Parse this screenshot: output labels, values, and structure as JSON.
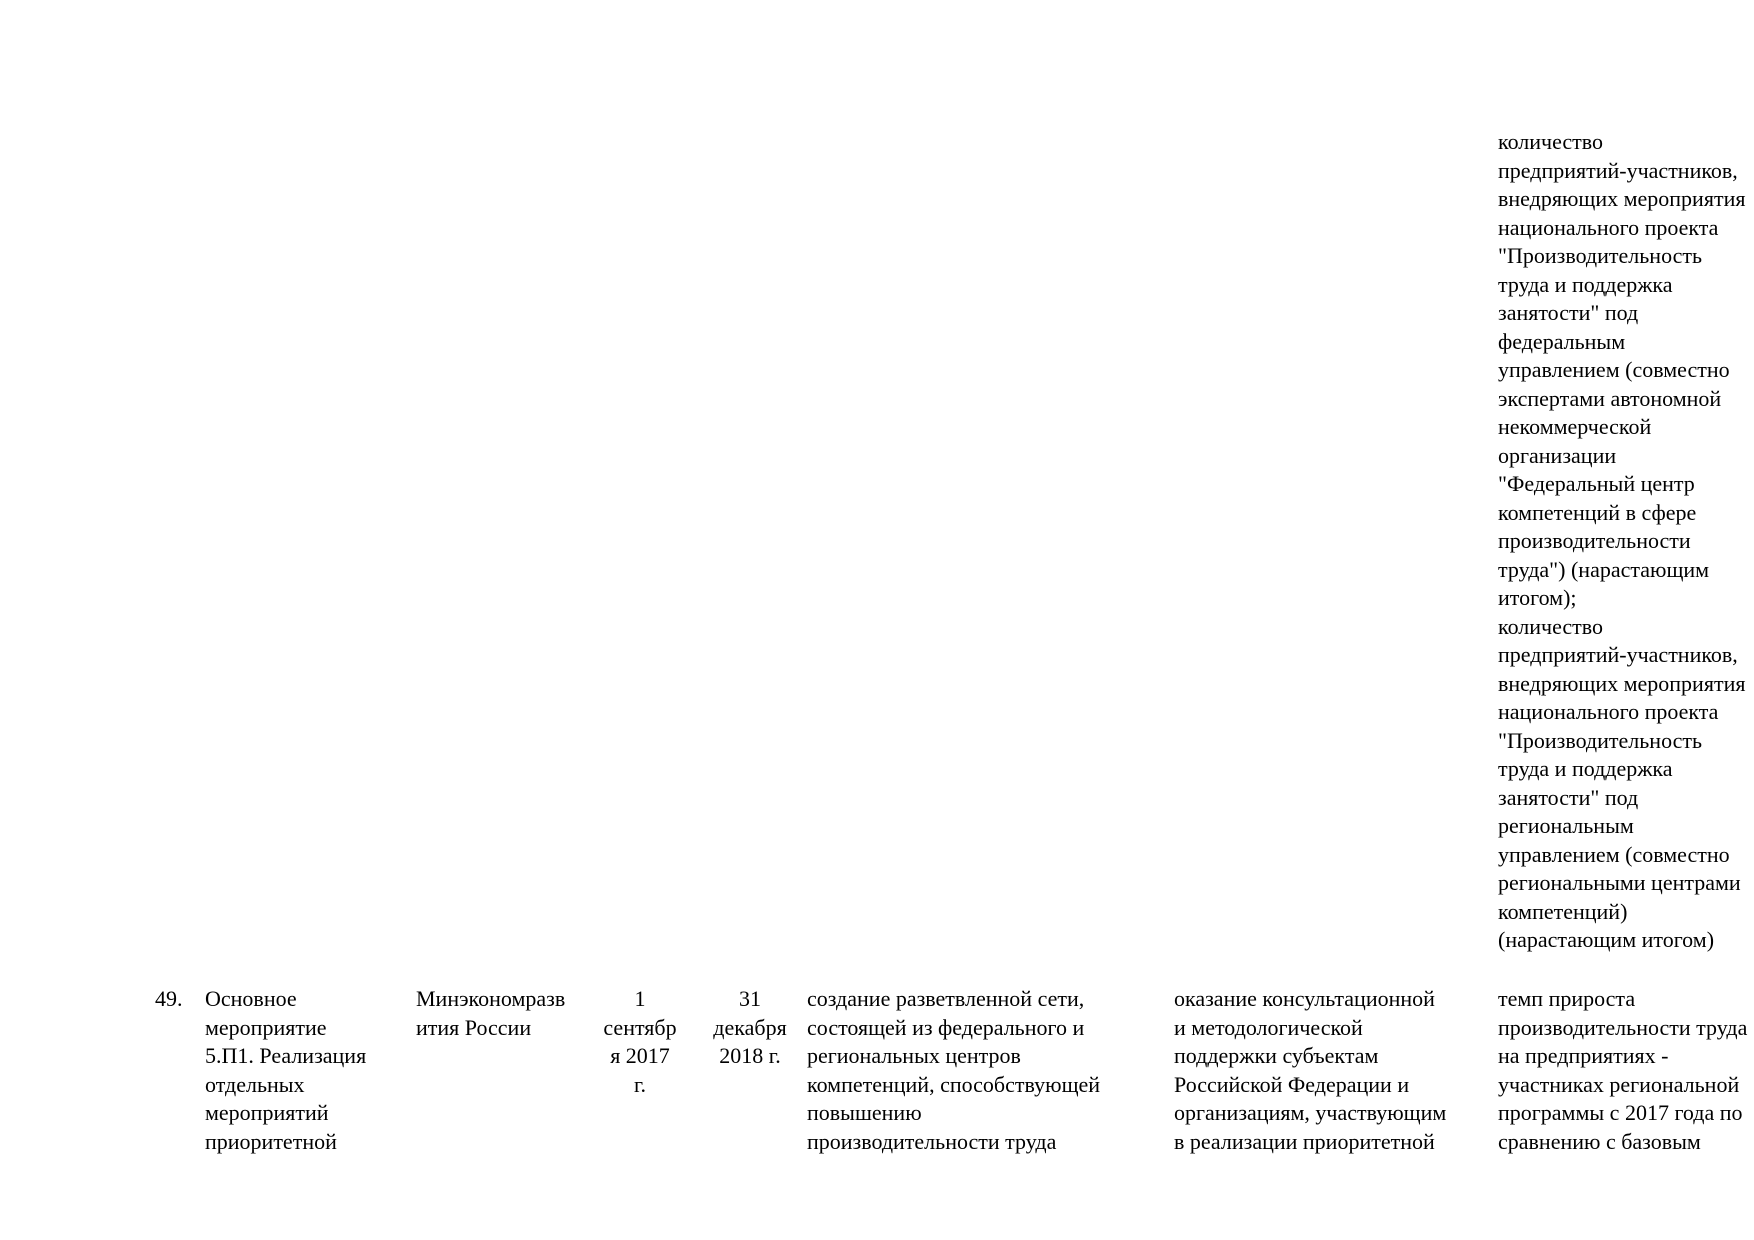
{
  "page": {
    "background_color": "#ffffff",
    "text_color": "#000000"
  },
  "continuation_cell": {
    "lines": [
      "количество",
      "предприятий-участников,",
      "внедряющих мероприятия",
      "национального проекта",
      "\"Производительность",
      "труда и поддержка",
      "занятости\" под",
      "федеральным",
      "управлением (совместно",
      "экспертами автономной",
      "некоммерческой",
      "организации",
      "\"Федеральный центр",
      "компетенций в сфере",
      "производительности",
      "труда\") (нарастающим",
      "итогом);",
      "количество",
      "предприятий-участников,",
      "внедряющих мероприятия",
      "национального проекта",
      "\"Производительность",
      "труда и поддержка",
      "занятости\" под",
      "региональным",
      "управлением (совместно",
      "региональными центрами",
      "компетенций)",
      "(нарастающим итогом)"
    ]
  },
  "row_49": {
    "number": "49.",
    "event_name_lines": [
      "Основное",
      "мероприятие",
      "5.П1. Реализация",
      "отдельных",
      "мероприятий",
      "приоритетной"
    ],
    "executor_lines": [
      "Минэкономразв",
      "ития России"
    ],
    "start_date_lines": [
      "1",
      "сентябр",
      "я 2017",
      "г."
    ],
    "end_date_lines": [
      "31",
      "декабря",
      "2018 г."
    ],
    "expected_result_lines": [
      "создание разветвленной сети,",
      "состоящей из федерального и",
      "региональных центров",
      "компетенций, способствующей",
      "повышению",
      "производительности труда"
    ],
    "support_direction_lines": [
      "оказание консультационной",
      "и методологической",
      "поддержки субъектам",
      "Российской Федерации и",
      "организациям, участвующим",
      "в реализации приоритетной"
    ],
    "indicator_lines": [
      "темп прироста",
      "производительности труда",
      "на предприятиях -",
      "участниках региональной",
      "программы с 2017 года по",
      "сравнению с базовым"
    ]
  }
}
